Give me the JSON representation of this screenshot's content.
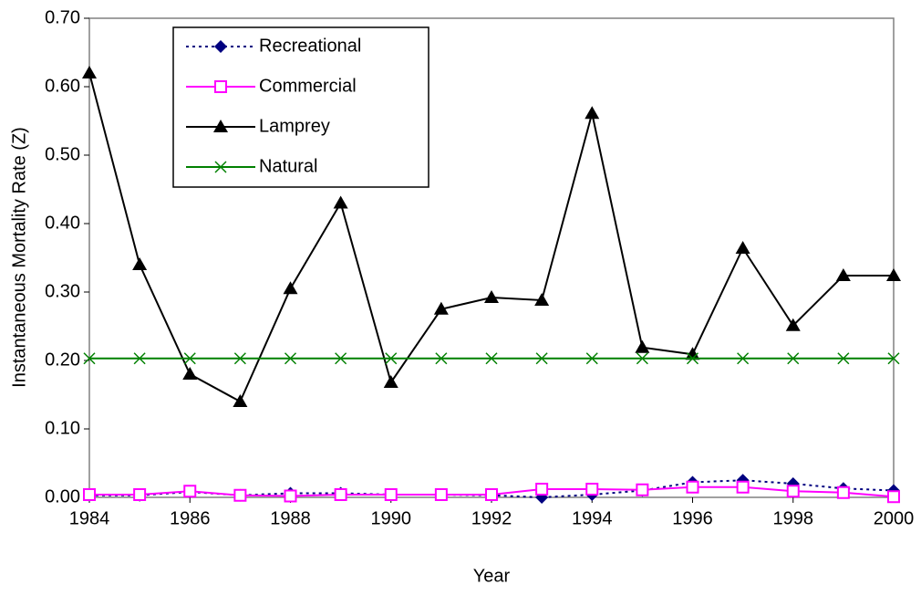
{
  "chart_data": {
    "type": "line",
    "xlabel": "Year",
    "ylabel": "Instantaneous Mortality Rate (Z)",
    "x": [
      1984,
      1985,
      1986,
      1987,
      1988,
      1989,
      1990,
      1991,
      1992,
      1993,
      1994,
      1995,
      1996,
      1997,
      1998,
      1999,
      2000
    ],
    "xlim": [
      1984,
      2000
    ],
    "xticks": [
      1984,
      1986,
      1988,
      1990,
      1992,
      1994,
      1996,
      1998,
      2000
    ],
    "ylim": [
      0,
      0.7
    ],
    "yticks": [
      {
        "value": 0,
        "label": "0.00"
      },
      {
        "value": 0.1,
        "label": "0.10"
      },
      {
        "value": 0.2,
        "label": "0.20"
      },
      {
        "value": 0.3,
        "label": "0.30"
      },
      {
        "value": 0.4,
        "label": "0.40"
      },
      {
        "value": 0.5,
        "label": "0.50"
      },
      {
        "value": 0.6,
        "label": "0.60"
      },
      {
        "value": 0.7,
        "label": "0.70"
      }
    ],
    "legend": "upper left",
    "series": [
      {
        "name": "Recreational",
        "color": "#000080",
        "marker": "diamond",
        "dash": "dotted",
        "values": [
          0.003,
          0.003,
          0.008,
          0.003,
          0.006,
          0.006,
          0.004,
          0.004,
          0.003,
          0.0,
          0.004,
          0.01,
          0.022,
          0.025,
          0.02,
          0.013,
          0.01
        ]
      },
      {
        "name": "Commercial",
        "color": "#ff00ff",
        "marker": "square",
        "dash": "solid",
        "values": [
          0.004,
          0.004,
          0.009,
          0.003,
          0.002,
          0.004,
          0.004,
          0.004,
          0.004,
          0.012,
          0.012,
          0.011,
          0.015,
          0.015,
          0.009,
          0.007,
          0.001
        ]
      },
      {
        "name": "Lamprey",
        "color": "#000000",
        "marker": "triangle",
        "dash": "solid",
        "values": [
          0.62,
          0.34,
          0.18,
          0.14,
          0.305,
          0.43,
          0.168,
          0.275,
          0.292,
          0.288,
          0.561,
          0.219,
          0.209,
          0.364,
          0.251,
          0.324,
          0.324
        ]
      },
      {
        "name": "Natural",
        "color": "#008000",
        "marker": "x",
        "dash": "solid",
        "values": [
          0.203,
          0.203,
          0.203,
          0.203,
          0.203,
          0.203,
          0.203,
          0.203,
          0.203,
          0.203,
          0.203,
          0.203,
          0.203,
          0.203,
          0.203,
          0.203,
          0.203
        ]
      }
    ]
  }
}
